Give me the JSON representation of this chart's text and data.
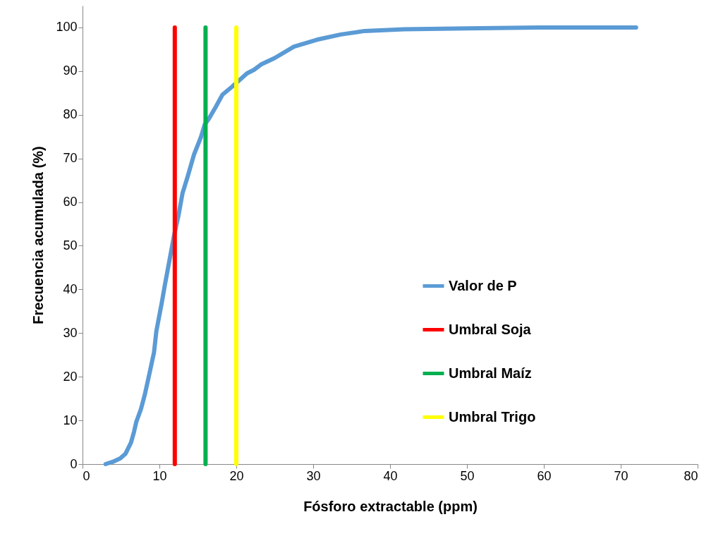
{
  "chart_data": {
    "type": "line",
    "xlabel": "Fósforo extractable (ppm)",
    "ylabel": "Frecuencia acumulada (%)",
    "xlim": [
      0,
      80
    ],
    "xticks": [
      0,
      10,
      20,
      30,
      40,
      50,
      60,
      70,
      80
    ],
    "ylim": [
      0,
      105
    ],
    "yticks": [
      0,
      10,
      20,
      30,
      40,
      50,
      60,
      70,
      80,
      90,
      100
    ],
    "grid": false,
    "legend": "bottom right",
    "line_style": "solid",
    "marker": "none",
    "series": [
      {
        "name": "Valor de P",
        "color": "#5b9bd5",
        "x": [
          3,
          3.9,
          4.9,
          5.6,
          6.3,
          6.7,
          7.0,
          7.6,
          8.1,
          8.7,
          9.3,
          9.6,
          10.3,
          10.7,
          11.3,
          11.9,
          12.5,
          13.0,
          13.7,
          14.5,
          15.4,
          15.9,
          16.4,
          17.2,
          18.2,
          19.5,
          19.8,
          21.4,
          22.3,
          23.2,
          25.0,
          27.5,
          30.5,
          33.6,
          36.7,
          41.8,
          50,
          60,
          72
        ],
        "values": [
          0,
          0.5,
          1.3,
          2.4,
          4.9,
          7.4,
          9.7,
          12.6,
          15.9,
          20.7,
          25.6,
          30.4,
          36.9,
          40.9,
          46.6,
          52.3,
          57.1,
          62,
          66,
          70.9,
          74.9,
          77.8,
          79,
          81.4,
          84.6,
          86.5,
          87,
          89.5,
          90.3,
          91.5,
          93,
          95.6,
          97.2,
          98.4,
          99.2,
          99.6,
          99.8,
          100,
          100
        ]
      },
      {
        "name": "Umbral Soja",
        "color": "#ff0000",
        "x": [
          12,
          12
        ],
        "values": [
          0,
          100
        ]
      },
      {
        "name": "Umbral Maíz",
        "color": "#00b050",
        "x": [
          16,
          16
        ],
        "values": [
          0,
          100
        ]
      },
      {
        "name": "Umbral Trigo",
        "color": "#ffff00",
        "x": [
          20,
          20
        ],
        "values": [
          0,
          100
        ]
      }
    ]
  }
}
